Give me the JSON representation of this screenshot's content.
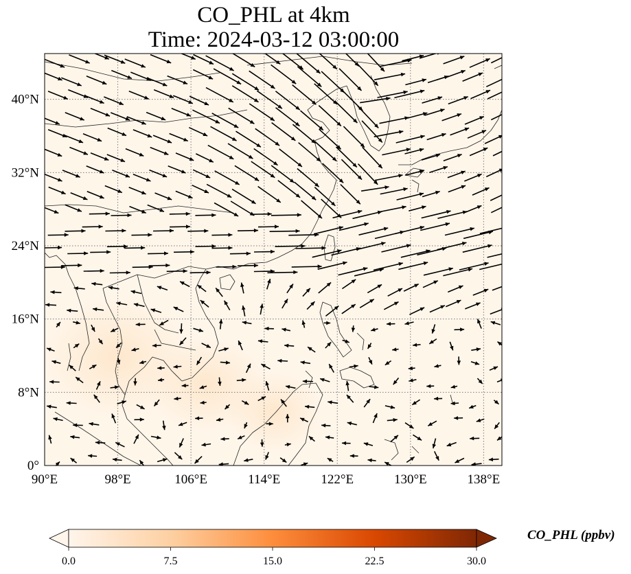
{
  "title": "CO_PHL at 4km",
  "subtitle": "Time: 2024-03-12 03:00:00",
  "map": {
    "extent": {
      "lon": [
        90,
        140
      ],
      "lat": [
        0,
        45
      ]
    },
    "lon_ticks": [
      {
        "value": 90,
        "label": "90°E"
      },
      {
        "value": 98,
        "label": "98°E"
      },
      {
        "value": 106,
        "label": "106°E"
      },
      {
        "value": 114,
        "label": "114°E"
      },
      {
        "value": 122,
        "label": "122°E"
      },
      {
        "value": 130,
        "label": "130°E"
      },
      {
        "value": 138,
        "label": "138°E"
      }
    ],
    "lat_ticks": [
      {
        "value": 0,
        "label": "0°"
      },
      {
        "value": 8,
        "label": "8°N"
      },
      {
        "value": 16,
        "label": "16°N"
      },
      {
        "value": 24,
        "label": "24°N"
      },
      {
        "value": 32,
        "label": "32°N"
      },
      {
        "value": 40,
        "label": "40°N"
      }
    ],
    "gridlines": true,
    "background_color": "#fff6ea"
  },
  "colorbar": {
    "label": "CO_PHL (ppbv)",
    "range": [
      0,
      30
    ],
    "colors": [
      "#fff5eb",
      "#fdd0a2",
      "#fd8d3c",
      "#d94801",
      "#7f2704"
    ],
    "ticks": [
      {
        "value": 0,
        "label": "0.0"
      },
      {
        "value": 7.5,
        "label": "7.5"
      },
      {
        "value": 15,
        "label": "15.0"
      },
      {
        "value": 22.5,
        "label": "22.5"
      },
      {
        "value": 30,
        "label": "30.0"
      }
    ],
    "extend": "both"
  }
}
